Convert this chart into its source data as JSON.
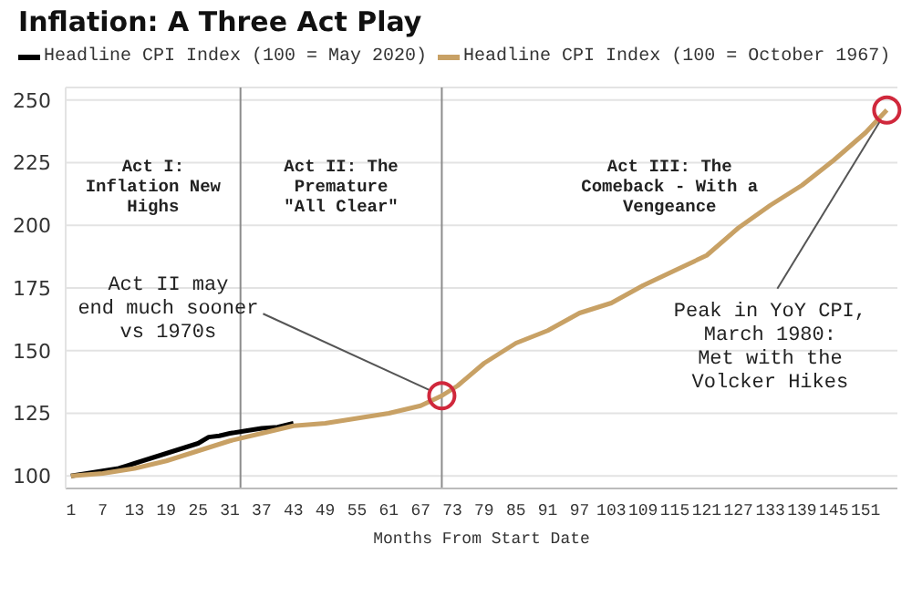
{
  "chart_data": {
    "type": "line",
    "title": "Inflation: A Three Act Play",
    "xlabel": "Months From Start Date",
    "xlim": [
      0,
      157
    ],
    "xticks": [
      1,
      7,
      13,
      19,
      25,
      31,
      37,
      43,
      49,
      55,
      61,
      67,
      73,
      79,
      85,
      91,
      97,
      103,
      109,
      115,
      121,
      127,
      133,
      139,
      145,
      151
    ],
    "ylim": [
      95,
      255
    ],
    "yticks": [
      100,
      125,
      150,
      175,
      200,
      225,
      250
    ],
    "grid": "y",
    "legend": "top left",
    "line_style": "solid",
    "series": [
      {
        "name": "Headline CPI Index (100 = May 2020)",
        "color": "#000000",
        "x": [
          1,
          4,
          7,
          10,
          13,
          16,
          19,
          22,
          25,
          27,
          29,
          31,
          34,
          37,
          40,
          43
        ],
        "values": [
          100,
          101,
          102,
          103,
          105,
          107,
          109,
          111,
          113,
          115.5,
          116,
          117,
          118,
          119,
          119.5,
          121
        ]
      },
      {
        "name": "Headline CPI Index (100 = October 1967)",
        "color": "#c8a165",
        "x": [
          1,
          7,
          13,
          19,
          25,
          31,
          37,
          43,
          49,
          55,
          61,
          67,
          71,
          74,
          79,
          85,
          91,
          97,
          103,
          109,
          115,
          121,
          127,
          133,
          139,
          145,
          151,
          155
        ],
        "values": [
          100,
          101,
          103,
          106,
          110,
          114,
          117,
          120,
          121,
          123,
          125,
          128,
          132,
          136,
          145,
          153,
          158,
          165,
          169,
          176,
          182,
          188,
          199,
          208,
          216,
          226,
          237,
          246
        ]
      }
    ],
    "ref_lines": [
      {
        "axis": "x",
        "value": 33,
        "color": "#8c8c8c"
      },
      {
        "axis": "x",
        "value": 71,
        "color": "#8c8c8c"
      }
    ],
    "annotations": [
      "Act I:\nInflation New\nHighs",
      "Act II: The\nPremature\n\"All Clear\"",
      "Act III: The\nComeback - With a\nVengeance",
      {
        "text": "Act II may\nend much sooner\nvs 1970s",
        "x": 71,
        "y": 132
      },
      {
        "text": "Peak in YoY CPI,\nMarch 1980:\nMet with the\nVolcker Hikes",
        "x": 155,
        "y": 246
      }
    ]
  }
}
